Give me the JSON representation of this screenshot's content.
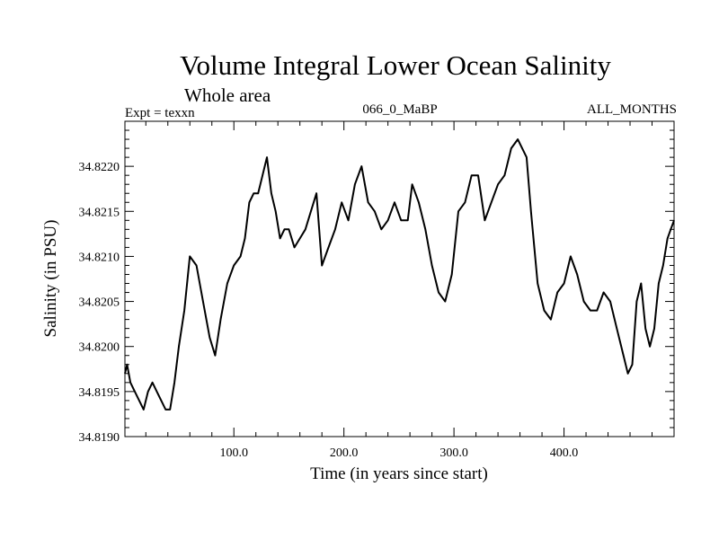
{
  "chart_data": {
    "type": "line",
    "title": "Volume Integral Lower Ocean Salinity",
    "subtitle": "Whole area",
    "header_left": "Expt = texxn",
    "header_center": "066_0_MaBP",
    "header_right": "ALL_MONTHS",
    "xlabel": "Time (in years since start)",
    "ylabel": "Salinity (in PSU)",
    "xlim": [
      1,
      500
    ],
    "ylim": [
      34.819,
      34.8225
    ],
    "xticks": [
      100,
      200,
      300,
      400
    ],
    "xtick_labels": [
      "100.0",
      "200.0",
      "300.0",
      "400.0"
    ],
    "yticks": [
      34.819,
      34.8195,
      34.82,
      34.8205,
      34.821,
      34.8215,
      34.822
    ],
    "ytick_labels": [
      "34.8190",
      "34.8195",
      "34.8200",
      "34.8205",
      "34.8210",
      "34.8215",
      "34.8220"
    ],
    "series": [
      {
        "name": "salinity",
        "x": [
          1,
          3,
          6,
          10,
          14,
          18,
          22,
          26,
          30,
          34,
          38,
          42,
          46,
          50,
          55,
          60,
          66,
          72,
          78,
          83,
          88,
          94,
          100,
          106,
          110,
          114,
          118,
          122,
          126,
          130,
          134,
          138,
          142,
          146,
          150,
          155,
          160,
          165,
          170,
          175,
          180,
          186,
          192,
          198,
          204,
          210,
          216,
          222,
          228,
          234,
          240,
          246,
          252,
          258,
          262,
          268,
          274,
          280,
          286,
          292,
          298,
          304,
          310,
          316,
          322,
          328,
          334,
          340,
          346,
          352,
          358,
          362,
          366,
          370,
          376,
          382,
          388,
          394,
          400,
          406,
          412,
          418,
          424,
          430,
          436,
          442,
          448,
          454,
          458,
          462,
          466,
          470,
          474,
          478,
          482,
          486,
          490,
          494,
          497,
          500
        ],
        "values": [
          34.8197,
          34.8198,
          34.8196,
          34.8195,
          34.8194,
          34.8193,
          34.8195,
          34.8196,
          34.8195,
          34.8194,
          34.8193,
          34.8193,
          34.8196,
          34.82,
          34.8204,
          34.821,
          34.8209,
          34.8205,
          34.8201,
          34.8199,
          34.8203,
          34.8207,
          34.8209,
          34.821,
          34.8212,
          34.8216,
          34.8217,
          34.8217,
          34.8219,
          34.8221,
          34.8217,
          34.8215,
          34.8212,
          34.8213,
          34.8213,
          34.8211,
          34.8212,
          34.8213,
          34.8215,
          34.8217,
          34.8209,
          34.8211,
          34.8213,
          34.8216,
          34.8214,
          34.8218,
          34.822,
          34.8216,
          34.8215,
          34.8213,
          34.8214,
          34.8216,
          34.8214,
          34.8214,
          34.8218,
          34.8216,
          34.8213,
          34.8209,
          34.8206,
          34.8205,
          34.8208,
          34.8215,
          34.8216,
          34.8219,
          34.8219,
          34.8214,
          34.8216,
          34.8218,
          34.8219,
          34.8222,
          34.8223,
          34.8222,
          34.8221,
          34.8215,
          34.8207,
          34.8204,
          34.8203,
          34.8206,
          34.8207,
          34.821,
          34.8208,
          34.8205,
          34.8204,
          34.8204,
          34.8206,
          34.8205,
          34.8202,
          34.8199,
          34.8197,
          34.8198,
          34.8205,
          34.8207,
          34.8202,
          34.82,
          34.8202,
          34.8207,
          34.8209,
          34.8212,
          34.8213,
          34.8214
        ]
      }
    ]
  }
}
